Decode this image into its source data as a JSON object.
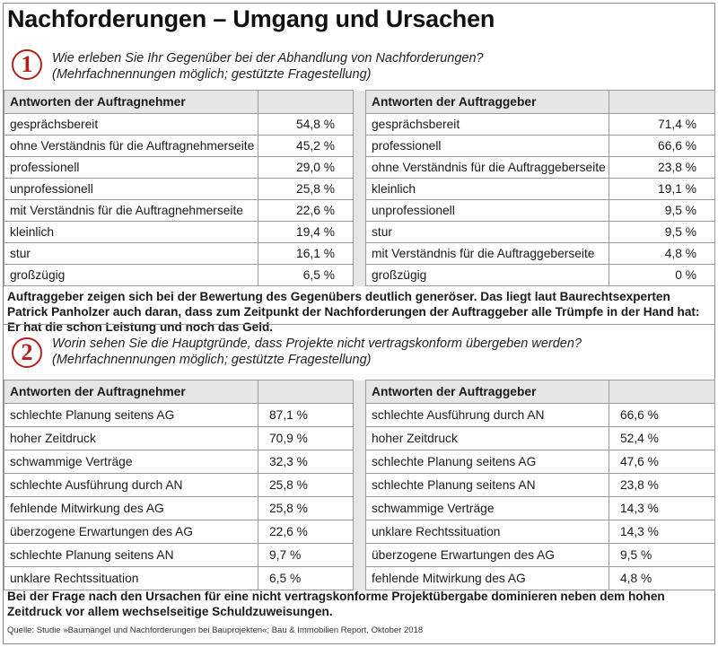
{
  "title": "Nachforderungen – Umgang und Ursachen",
  "section1": {
    "number": "1",
    "question": "Wie erleben Sie Ihr Gegenüber bei der Abhandlung von Nachforderungen?",
    "note": "(Mehrfachnennungen möglich; gestützte Fragestellung)",
    "left_header": "Antworten der Auftragnehmer",
    "right_header": "Antworten der Auftraggeber",
    "left_rows": [
      {
        "label": "gesprächsbereit",
        "value": "54,8 %"
      },
      {
        "label": "ohne Verständnis für die Auftragnehmerseite",
        "value": "45,2 %"
      },
      {
        "label": "professionell",
        "value": "29,0 %"
      },
      {
        "label": "unprofessionell",
        "value": "25,8 %"
      },
      {
        "label": "mit Verständnis für die Auftragnehmerseite",
        "value": "22,6 %"
      },
      {
        "label": "kleinlich",
        "value": "19,4 %"
      },
      {
        "label": "stur",
        "value": "16,1 %"
      },
      {
        "label": "großzügig",
        "value": "6,5 %"
      }
    ],
    "right_rows": [
      {
        "label": "gesprächsbereit",
        "value": "71,4 %"
      },
      {
        "label": "professionell",
        "value": "66,6 %"
      },
      {
        "label": "ohne Verständnis für die Auftraggeberseite",
        "value": "23,8 %"
      },
      {
        "label": "kleinlich",
        "value": "19,1 %"
      },
      {
        "label": "unprofessionell",
        "value": "9,5 %"
      },
      {
        "label": "stur",
        "value": "9,5 %"
      },
      {
        "label": "mit Verständnis für die Auftraggeberseite",
        "value": "4,8 %"
      },
      {
        "label": "großzügig",
        "value": "0 %"
      }
    ],
    "summary": "Auftraggeber zeigen sich bei der Bewertung des Gegenübers deutlich generöser. Das liegt laut Baurechtsexperten Patrick Panholzer auch daran, dass zum Zeitpunkt der Nachforderungen der Auftraggeber alle Trümpfe in der Hand hat: Er hat die schon Leistung und noch das Geld."
  },
  "section2": {
    "number": "2",
    "question": "Worin sehen Sie die Hauptgründe, dass Projekte nicht vertragskonform übergeben werden?",
    "note": "(Mehrfachnennungen möglich; gestützte Fragestellung)",
    "left_header": "Antworten der Auftragnehmer",
    "right_header": "Antworten der Auftraggeber",
    "left_rows": [
      {
        "label": "schlechte Planung seitens AG",
        "value": "87,1 %"
      },
      {
        "label": "hoher Zeitdruck",
        "value": "70,9 %"
      },
      {
        "label": "schwammige Verträge",
        "value": "32,3 %"
      },
      {
        "label": "schlechte Ausführung durch AN",
        "value": "25,8 %"
      },
      {
        "label": "fehlende Mitwirkung des AG",
        "value": "25,8 %"
      },
      {
        "label": "überzogene Erwartungen des AG",
        "value": "22,6 %"
      },
      {
        "label": "schlechte Planung seitens AN",
        "value": "9,7 %"
      },
      {
        "label": "unklare Rechtssituation",
        "value": "6,5 %"
      }
    ],
    "right_rows": [
      {
        "label": "schlechte Ausführung durch AN",
        "value": "66,6 %"
      },
      {
        "label": "hoher Zeitdruck",
        "value": "52,4 %"
      },
      {
        "label": "schlechte Planung seitens AG",
        "value": "47,6 %"
      },
      {
        "label": "schlechte Planung seitens AN",
        "value": "23,8 %"
      },
      {
        "label": "schwammige Verträge",
        "value": "14,3 %"
      },
      {
        "label": "unklare Rechtssituation",
        "value": "14,3 %"
      },
      {
        "label": "überzogene Erwartungen des AG",
        "value": "9,5 %"
      },
      {
        "label": "fehlende Mitwirkung des AG",
        "value": "4,8 %"
      }
    ],
    "summary": "Bei der Frage nach den Ursachen für eine nicht vertragskonforme Projektübergabe dominieren neben dem hohen Zeitdruck vor allem wechselseitige Schuldzuweisungen."
  },
  "source": "Quelle: Studie »Baumängel und Nachforderungen bei Bauprojekten«; Bau & Immobilien Report, Oktober 2018",
  "colors": {
    "accent": "#b3201e",
    "header_bg": "#e6e6e6",
    "border": "#9a9a9a"
  }
}
